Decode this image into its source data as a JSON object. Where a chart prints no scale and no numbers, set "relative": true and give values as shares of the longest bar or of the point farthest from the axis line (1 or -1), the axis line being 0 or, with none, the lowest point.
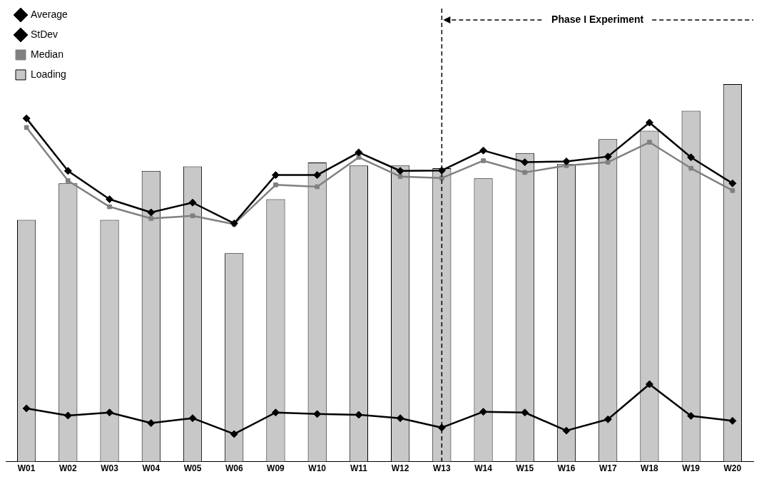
{
  "chart_data": {
    "type": "bar",
    "relative": true,
    "legend": "top left",
    "grid": false,
    "categories": [
      "W01",
      "W02",
      "W03",
      "W04",
      "W05",
      "W06",
      "W09",
      "W10",
      "W11",
      "W12",
      "W13",
      "W14",
      "W15",
      "W16",
      "W17",
      "W18",
      "W19",
      "W20"
    ],
    "series": [
      {
        "name": "Loading",
        "color": "#c8c8c8",
        "values": [
          0.64,
          0.737,
          0.64,
          0.77,
          0.782,
          0.552,
          0.695,
          0.792,
          0.784,
          0.784,
          0.777,
          0.75,
          0.817,
          0.788,
          0.854,
          0.876,
          0.929,
          1
        ]
      },
      {
        "name": "Average",
        "type": "line",
        "color": "#000000",
        "marker": "diamond",
        "values": [
          0.909,
          0.77,
          0.695,
          0.66,
          0.686,
          0.631,
          0.759,
          0.759,
          0.819,
          0.77,
          0.771,
          0.824,
          0.793,
          0.795,
          0.808,
          0.898,
          0.806,
          0.737
        ]
      },
      {
        "name": "StDev",
        "type": "line",
        "color": "#000000",
        "marker": "diamond",
        "values": [
          0.141,
          0.122,
          0.13,
          0.102,
          0.115,
          0.073,
          0.13,
          0.126,
          0.124,
          0.115,
          0.09,
          0.132,
          0.13,
          0.082,
          0.112,
          0.205,
          0.121,
          0.108
        ]
      },
      {
        "name": "Median",
        "type": "line",
        "color": "#808080",
        "marker": "square",
        "values": [
          0.885,
          0.744,
          0.675,
          0.644,
          0.651,
          0.629,
          0.733,
          0.728,
          0.806,
          0.755,
          0.751,
          0.797,
          0.766,
          0.784,
          0.793,
          0.846,
          0.777,
          0.718
        ]
      }
    ],
    "ref_lines": [
      {
        "axis": "x",
        "value": "W13",
        "label": "Phase I Experiment",
        "line_style": "dashed"
      }
    ]
  }
}
